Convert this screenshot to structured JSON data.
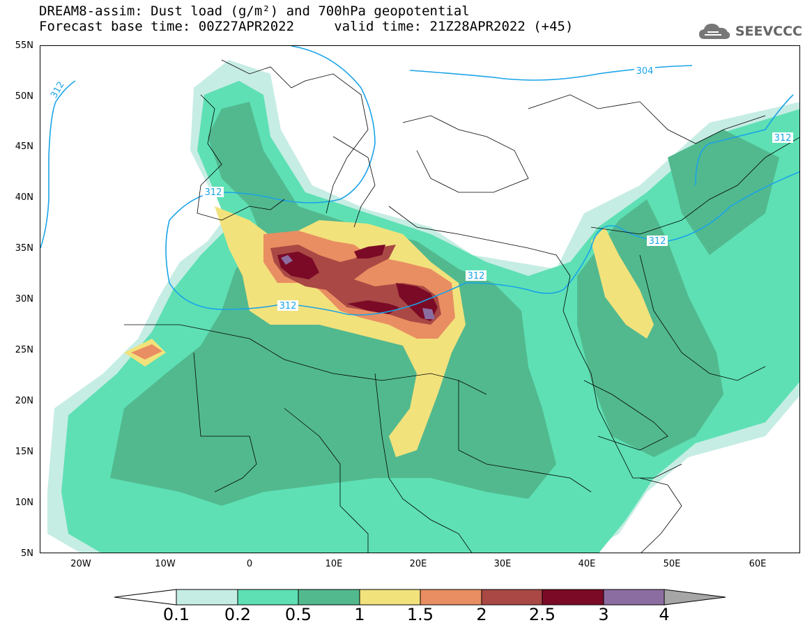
{
  "header": {
    "title_line1": "DREAM8-assim: Dust load (g/m²) and 700hPa geopotential",
    "title_line2": "Forecast base time: 00Z27APR2022     valid time: 21Z28APR2022 (+45)",
    "logo_text": "SEEVCCC"
  },
  "map": {
    "lat_labels": [
      "55N",
      "50N",
      "45N",
      "40N",
      "35N",
      "30N",
      "25N",
      "20N",
      "15N",
      "10N",
      "5N"
    ],
    "lon_labels": [
      "20W",
      "10W",
      "0",
      "10E",
      "20E",
      "30E",
      "40E",
      "50E",
      "60E"
    ],
    "contour_labels": [
      "312",
      "304",
      "312",
      "312",
      "312",
      "312",
      "312"
    ],
    "contour_color": "#1aa3e8"
  },
  "colorbar": {
    "ticks": [
      "0.1",
      "0.2",
      "0.5",
      "1",
      "1.5",
      "2",
      "2.5",
      "3",
      "4"
    ],
    "colors": [
      "#ffffff",
      "#c6ede4",
      "#5ee0b4",
      "#52b98e",
      "#f2e27c",
      "#e98e62",
      "#a94844",
      "#7b0a26",
      "#8c6da1",
      "#a6a6a6"
    ]
  }
}
